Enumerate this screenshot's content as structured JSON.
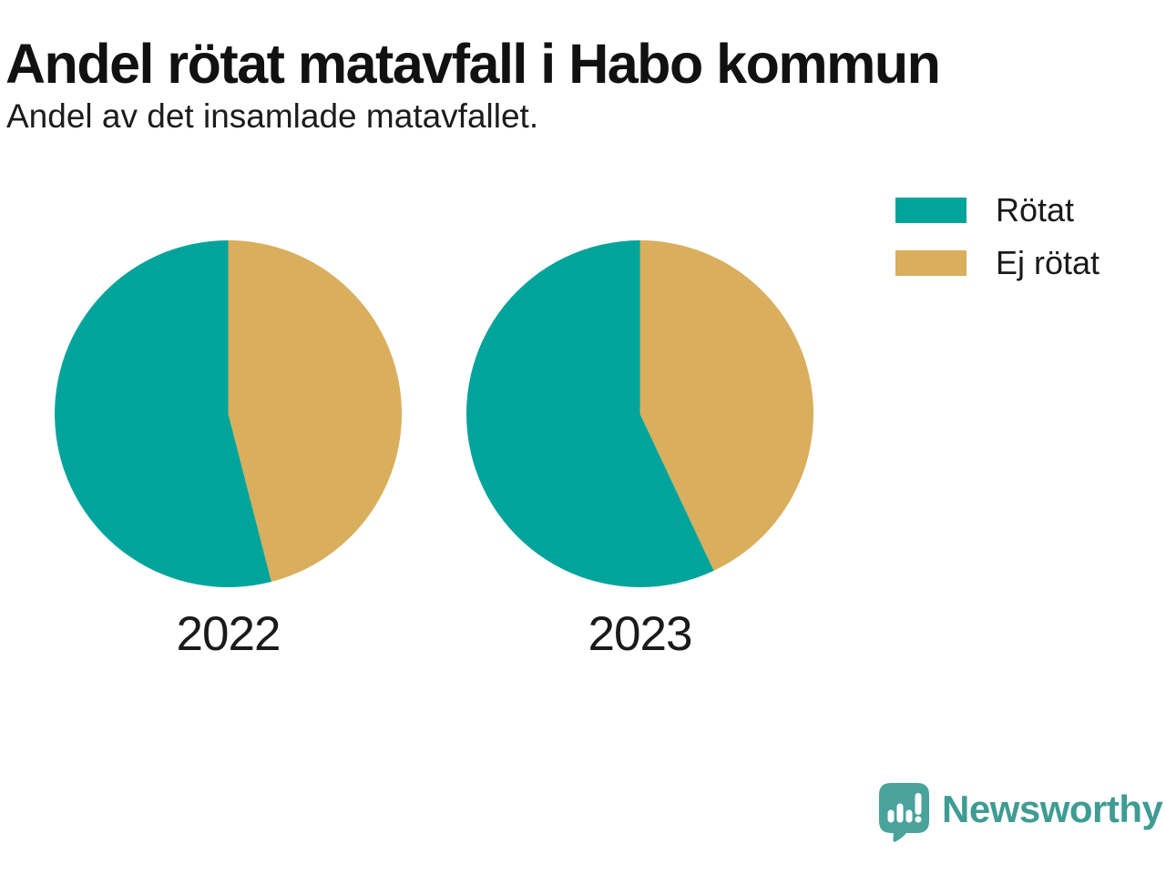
{
  "header": {
    "title": "Andel rötat matavfall i Habo kommun",
    "subtitle": "Andel av det insamlade matavfallet."
  },
  "colors": {
    "rotat": "#00a49b",
    "ej_rotat": "#d9ae5c",
    "text": "#1a1a1a",
    "logo_bubble": "#4aa39b",
    "logo_text": "#3f9c94",
    "background": "#ffffff"
  },
  "legend": {
    "position": "top-right",
    "items": [
      {
        "label": "Rötat",
        "color": "#00a49b"
      },
      {
        "label": "Ej rötat",
        "color": "#d9ae5c"
      }
    ]
  },
  "chart_data": {
    "type": "pie",
    "title": "Andel rötat matavfall i Habo kommun",
    "subtitle": "Andel av det insamlade matavfallet.",
    "unit": "%",
    "categories": [
      "2022",
      "2023"
    ],
    "series_names": [
      "Rötat",
      "Ej rötat"
    ],
    "start_angle": "12-oclock",
    "first_series_direction": "counter-clockwise",
    "legend_position": "top-right",
    "pies": [
      {
        "label": "2022",
        "slices": [
          {
            "name": "Rötat",
            "value": 54,
            "color": "#00a49b"
          },
          {
            "name": "Ej rötat",
            "value": 46,
            "color": "#d9ae5c"
          }
        ]
      },
      {
        "label": "2023",
        "slices": [
          {
            "name": "Rötat",
            "value": 57,
            "color": "#00a49b"
          },
          {
            "name": "Ej rötat",
            "value": 43,
            "color": "#d9ae5c"
          }
        ]
      }
    ]
  },
  "footer": {
    "brand": "Newsworthy",
    "logo_icon": "bar-chart-speech-bubble-icon"
  }
}
